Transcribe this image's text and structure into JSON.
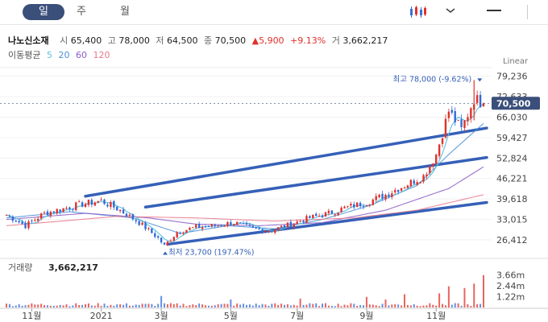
{
  "tabs": [
    {
      "label": "일",
      "active": true
    },
    {
      "label": "주",
      "active": false
    },
    {
      "label": "월",
      "active": false
    }
  ],
  "stock": {
    "name": "나노신소재",
    "open_label": "시",
    "open": "65,400",
    "high_label": "고",
    "high": "78,000",
    "low_label": "저",
    "low": "64,500",
    "close_label": "종",
    "close": "70,500",
    "change": "▲5,900",
    "change_pct": "+9.13%",
    "volume_label": "거",
    "volume": "3,662,217"
  },
  "moving_average": {
    "label": "이동평균",
    "periods": [
      {
        "value": "5",
        "color": "#5bc0de"
      },
      {
        "value": "20",
        "color": "#4a8fd8"
      },
      {
        "value": "60",
        "color": "#8a5cc6"
      },
      {
        "value": "120",
        "color": "#e8788a"
      }
    ]
  },
  "chart_data": {
    "type": "candlestick",
    "scale_label": "Linear",
    "yticks": [
      "79,236",
      "72,633",
      "66,030",
      "59,427",
      "52,824",
      "46,221",
      "39,618",
      "33,015",
      "26,412"
    ],
    "ytick_values": [
      79236,
      72633,
      66030,
      59427,
      52824,
      46221,
      39618,
      33015,
      26412
    ],
    "ylim": [
      22000,
      82000
    ],
    "xticks": [
      "11월",
      "2021",
      "3월",
      "5월",
      "7월",
      "9월",
      "11월"
    ],
    "xtick_index": [
      8,
      30,
      49,
      71,
      92,
      114,
      136
    ],
    "current_price": "70,500",
    "current_value": 70500,
    "max_annotation": {
      "text": "최고 78,000 (-9.62%)",
      "value": 78000,
      "index": 148
    },
    "min_annotation": {
      "text": "최저 23,700 (197.47%)",
      "value": 23700,
      "index": 50
    },
    "price_path": [
      [
        0,
        34500
      ],
      [
        6,
        31000
      ],
      [
        12,
        35000
      ],
      [
        18,
        36500
      ],
      [
        24,
        38000
      ],
      [
        30,
        39000
      ],
      [
        36,
        36000
      ],
      [
        42,
        32000
      ],
      [
        48,
        27000
      ],
      [
        50,
        24500
      ],
      [
        54,
        29000
      ],
      [
        60,
        30500
      ],
      [
        66,
        31000
      ],
      [
        72,
        32000
      ],
      [
        78,
        30000
      ],
      [
        84,
        29500
      ],
      [
        90,
        31500
      ],
      [
        96,
        33500
      ],
      [
        102,
        35000
      ],
      [
        108,
        37000
      ],
      [
        114,
        38500
      ],
      [
        120,
        41000
      ],
      [
        126,
        44000
      ],
      [
        132,
        47000
      ],
      [
        136,
        54000
      ],
      [
        140,
        68000
      ],
      [
        144,
        62000
      ],
      [
        148,
        72000
      ],
      [
        151,
        70500
      ]
    ],
    "channel_lines": [
      [
        [
          25,
          40500
        ],
        [
          152,
          62500
        ]
      ],
      [
        [
          44,
          37000
        ],
        [
          152,
          53000
        ]
      ],
      [
        [
          51,
          25000
        ],
        [
          152,
          38500
        ]
      ]
    ],
    "ma_paths": [
      {
        "period": "20",
        "points": [
          [
            0,
            33500
          ],
          [
            20,
            35500
          ],
          [
            40,
            33500
          ],
          [
            55,
            28500
          ],
          [
            70,
            31000
          ],
          [
            85,
            30000
          ],
          [
            100,
            33000
          ],
          [
            115,
            37500
          ],
          [
            130,
            44000
          ],
          [
            140,
            54000
          ],
          [
            151,
            64000
          ]
        ]
      },
      {
        "period": "60",
        "points": [
          [
            0,
            33000
          ],
          [
            25,
            35000
          ],
          [
            45,
            33500
          ],
          [
            60,
            31500
          ],
          [
            80,
            31000
          ],
          [
            100,
            32000
          ],
          [
            120,
            36000
          ],
          [
            140,
            43000
          ],
          [
            151,
            50000
          ]
        ]
      },
      {
        "period": "120",
        "points": [
          [
            0,
            31000
          ],
          [
            35,
            34000
          ],
          [
            60,
            33500
          ],
          [
            85,
            32500
          ],
          [
            110,
            33500
          ],
          [
            130,
            36000
          ],
          [
            151,
            41000
          ]
        ]
      }
    ],
    "volume": {
      "label": "거래량",
      "value": "3,662,217",
      "yticks": [
        "3.66m",
        "2.44m",
        "1.22m"
      ],
      "ytick_values": [
        3.66,
        2.44,
        1.22
      ],
      "ylim": [
        0,
        4.0
      ],
      "spikes": [
        [
          49,
          1.3
        ],
        [
          71,
          0.9
        ],
        [
          93,
          1.0
        ],
        [
          114,
          1.2
        ],
        [
          120,
          0.9
        ],
        [
          126,
          1.5
        ],
        [
          137,
          1.6
        ],
        [
          140,
          2.4
        ],
        [
          145,
          2.2
        ],
        [
          148,
          2.7
        ],
        [
          151,
          3.66
        ]
      ]
    }
  }
}
